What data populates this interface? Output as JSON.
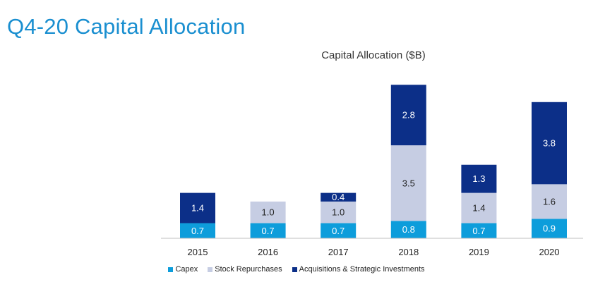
{
  "page": {
    "title": "Q4-20 Capital Allocation"
  },
  "chart_data": {
    "type": "bar",
    "stacked": true,
    "title": "Capital Allocation ($B)",
    "xlabel": "",
    "ylabel": "",
    "categories": [
      "2015",
      "2016",
      "2017",
      "2018",
      "2019",
      "2020"
    ],
    "ylim": [
      0,
      7.5
    ],
    "grid": false,
    "legend_position": "bottom",
    "series": [
      {
        "name": "Capex",
        "color": "#0d9ddb",
        "label_color": "#ffffff",
        "values": [
          0.7,
          0.7,
          0.7,
          0.8,
          0.7,
          0.9
        ],
        "labels": [
          "0.7",
          "0.7",
          "0.7",
          "0.8",
          "0.7",
          "0.9"
        ]
      },
      {
        "name": "Stock Repurchases",
        "color": "#c6cde3",
        "label_color": "#222222",
        "values": [
          0.0,
          1.0,
          1.0,
          3.5,
          1.4,
          1.6
        ],
        "labels": [
          "",
          "1.0",
          "1.0",
          "3.5",
          "1.4",
          "1.6"
        ]
      },
      {
        "name": "Acquisitions & Strategic Investments",
        "color": "#0c2f88",
        "label_color": "#ffffff",
        "values": [
          1.4,
          0.0,
          0.4,
          2.8,
          1.3,
          3.8
        ],
        "labels": [
          "1.4",
          "",
          "0.4",
          "2.8",
          "1.3",
          "3.8"
        ]
      }
    ]
  }
}
